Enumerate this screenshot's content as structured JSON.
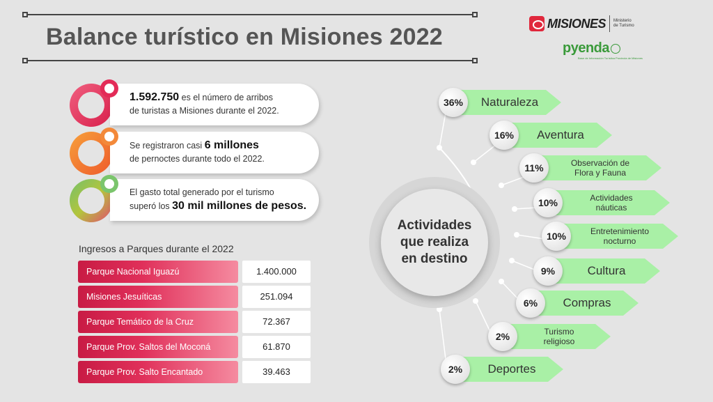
{
  "header": {
    "title": "Balance turístico en Misiones 2022"
  },
  "logos": {
    "misiones_word": "MISIONES",
    "ministry_line1": "Ministerio",
    "ministry_line2": "de Turismo",
    "pyenda_word": "pyenda",
    "pyenda_tag": "Base de Información Turística Provincia de Misiones"
  },
  "stats": [
    {
      "highlight": "1.592.750",
      "text_a": " es el número de arribos",
      "text_b": "de turistas a Misiones durante el 2022."
    },
    {
      "text_a": "Se registraron casi ",
      "highlight": "6 millones",
      "text_b": "de pernoctes durante todo el 2022."
    },
    {
      "text_a": "El gasto total generado por el turismo",
      "text_b": "superó los ",
      "highlight": "30 mil millones de pesos."
    }
  ],
  "parks": {
    "title": "Ingresos a Parques durante el 2022",
    "rows": [
      {
        "name": "Parque Nacional Iguazú",
        "value": "1.400.000"
      },
      {
        "name": "Misiones Jesuíticas",
        "value": "251.094"
      },
      {
        "name": "Parque Temático de la Cruz",
        "value": "72.367"
      },
      {
        "name": "Parque Prov. Saltos del Moconá",
        "value": "61.870"
      },
      {
        "name": "Parque Prov. Salto Encantado",
        "value": "39.463"
      }
    ]
  },
  "activities": {
    "center_line1": "Actividades",
    "center_line2": "que realiza",
    "center_line3": "en destino",
    "accent_color": "#a9f0a6",
    "items": [
      {
        "pct": "36%",
        "label1": "Naturaleza",
        "label2": ""
      },
      {
        "pct": "16%",
        "label1": "Aventura",
        "label2": ""
      },
      {
        "pct": "11%",
        "label1": "Observación de",
        "label2": "Flora y Fauna"
      },
      {
        "pct": "10%",
        "label1": "Actividades",
        "label2": "náuticas"
      },
      {
        "pct": "10%",
        "label1": "Entretenimiento",
        "label2": "nocturno"
      },
      {
        "pct": "9%",
        "label1": "Cultura",
        "label2": ""
      },
      {
        "pct": "6%",
        "label1": "Compras",
        "label2": ""
      },
      {
        "pct": "2%",
        "label1": "Turismo",
        "label2": "religioso"
      },
      {
        "pct": "2%",
        "label1": "Deportes",
        "label2": ""
      }
    ]
  }
}
